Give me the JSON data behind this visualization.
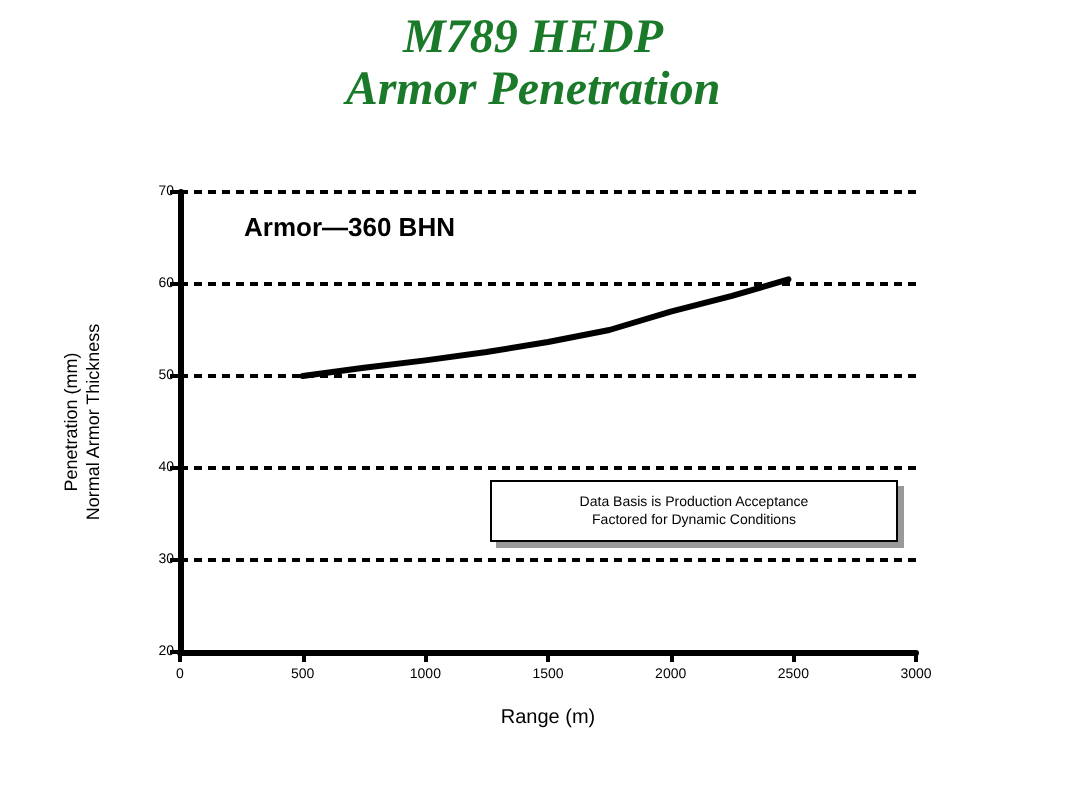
{
  "chart_data": {
    "type": "line",
    "title": "M789 HEDP",
    "subtitle": "Armor Penetration",
    "xlabel": "Range (m)",
    "ylabel": "Penetration (mm)\nNormal Armor Thickness",
    "annotations": [
      "Armor—360 BHN",
      "Data Basis is Production Acceptance\nFactored for Dynamic Conditions"
    ],
    "x": [
      500,
      750,
      1000,
      1250,
      1500,
      1750,
      2000,
      2250,
      2480
    ],
    "series": [
      {
        "color": "#000000",
        "values": [
          50,
          50.9,
          51.7,
          52.6,
          53.7,
          55,
          57,
          58.7,
          60.5
        ]
      }
    ],
    "xlim": [
      0,
      3000
    ],
    "xticks": [
      0,
      500,
      1000,
      1500,
      2000,
      2500,
      3000
    ],
    "ylim": [
      20,
      70
    ],
    "yticks": [
      20,
      30,
      40,
      50,
      60,
      70
    ],
    "grid": "y",
    "marker": "none",
    "line_style": "solid"
  }
}
